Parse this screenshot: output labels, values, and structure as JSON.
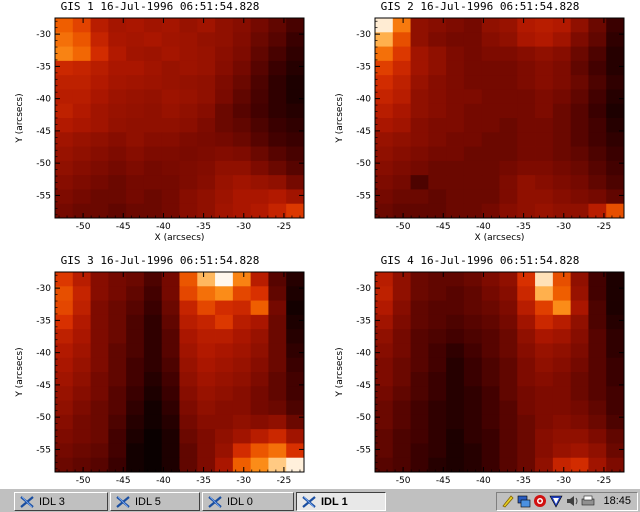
{
  "taskbar": {
    "buttons": [
      {
        "label": "IDL 3",
        "active": false,
        "icon": "idl-icon"
      },
      {
        "label": "IDL 5",
        "active": false,
        "icon": "idl-icon"
      },
      {
        "label": "IDL 0",
        "active": false,
        "icon": "idl-icon"
      },
      {
        "label": "IDL 1",
        "active": true,
        "icon": "idl-icon"
      }
    ],
    "tray_icons": [
      "pen-icon",
      "network-icon",
      "shield-icon",
      "antivirus-icon",
      "volume-icon",
      "printer-icon"
    ],
    "clock": "18:45"
  },
  "colormap": [
    "#000000",
    "#3c0000",
    "#7a0a00",
    "#b01800",
    "#d83000",
    "#f06000",
    "#ff9a20",
    "#ffd090",
    "#ffffff"
  ],
  "chart_data": [
    {
      "type": "heatmap",
      "title": "GIS 1 16-Jul-1996 06:51:54.828",
      "xlabel": "X (arcsecs)",
      "ylabel": "Y (arcsecs)",
      "xticks": [
        "-50",
        "-45",
        "-40",
        "-35",
        "-30",
        "-25"
      ],
      "yticks": [
        "-30",
        "-35",
        "-40",
        "-45",
        "-50",
        "-55"
      ],
      "xlim": [
        -53.5,
        -22.5
      ],
      "ylim": [
        -58.5,
        -27.5
      ],
      "values": [
        [
          0.62,
          0.55,
          0.4,
          0.35,
          0.36,
          0.34,
          0.35,
          0.32,
          0.34,
          0.3,
          0.28,
          0.24,
          0.2,
          0.15
        ],
        [
          0.66,
          0.6,
          0.44,
          0.36,
          0.35,
          0.36,
          0.34,
          0.33,
          0.31,
          0.3,
          0.27,
          0.22,
          0.18,
          0.12
        ],
        [
          0.7,
          0.64,
          0.48,
          0.38,
          0.34,
          0.33,
          0.35,
          0.33,
          0.32,
          0.29,
          0.26,
          0.2,
          0.15,
          0.1
        ],
        [
          0.46,
          0.44,
          0.4,
          0.36,
          0.36,
          0.34,
          0.32,
          0.33,
          0.32,
          0.28,
          0.24,
          0.18,
          0.12,
          0.08
        ],
        [
          0.42,
          0.42,
          0.38,
          0.35,
          0.34,
          0.33,
          0.32,
          0.31,
          0.3,
          0.26,
          0.22,
          0.16,
          0.1,
          0.06
        ],
        [
          0.4,
          0.4,
          0.36,
          0.33,
          0.32,
          0.31,
          0.33,
          0.32,
          0.3,
          0.25,
          0.2,
          0.15,
          0.1,
          0.06
        ],
        [
          0.42,
          0.38,
          0.34,
          0.32,
          0.31,
          0.3,
          0.32,
          0.3,
          0.28,
          0.22,
          0.18,
          0.14,
          0.1,
          0.08
        ],
        [
          0.38,
          0.36,
          0.34,
          0.31,
          0.3,
          0.3,
          0.3,
          0.29,
          0.26,
          0.22,
          0.2,
          0.16,
          0.12,
          0.1
        ],
        [
          0.34,
          0.32,
          0.3,
          0.28,
          0.3,
          0.28,
          0.28,
          0.26,
          0.25,
          0.24,
          0.22,
          0.18,
          0.14,
          0.12
        ],
        [
          0.32,
          0.3,
          0.28,
          0.26,
          0.28,
          0.26,
          0.26,
          0.25,
          0.26,
          0.27,
          0.26,
          0.22,
          0.18,
          0.15
        ],
        [
          0.3,
          0.28,
          0.26,
          0.24,
          0.26,
          0.24,
          0.25,
          0.26,
          0.27,
          0.3,
          0.3,
          0.26,
          0.22,
          0.18
        ],
        [
          0.28,
          0.26,
          0.24,
          0.22,
          0.24,
          0.24,
          0.24,
          0.26,
          0.28,
          0.32,
          0.34,
          0.32,
          0.3,
          0.24
        ],
        [
          0.26,
          0.24,
          0.22,
          0.22,
          0.24,
          0.22,
          0.24,
          0.28,
          0.3,
          0.33,
          0.36,
          0.36,
          0.38,
          0.34
        ],
        [
          0.24,
          0.22,
          0.22,
          0.2,
          0.22,
          0.22,
          0.24,
          0.28,
          0.3,
          0.34,
          0.36,
          0.38,
          0.44,
          0.52
        ]
      ]
    },
    {
      "type": "heatmap",
      "title": "GIS 2 16-Jul-1996 06:51:54.828",
      "xlabel": "X (arcsecs)",
      "ylabel": "Y (arcsecs)",
      "xticks": [
        "-50",
        "-45",
        "-40",
        "-35",
        "-30",
        "-25"
      ],
      "yticks": [
        "-30",
        "-35",
        "-40",
        "-45",
        "-50",
        "-55"
      ],
      "xlim": [
        -53.5,
        -22.5
      ],
      "ylim": [
        -58.5,
        -27.5
      ],
      "values": [
        [
          0.95,
          0.68,
          0.3,
          0.28,
          0.26,
          0.24,
          0.3,
          0.32,
          0.38,
          0.4,
          0.38,
          0.3,
          0.22,
          0.12
        ],
        [
          0.8,
          0.58,
          0.3,
          0.26,
          0.24,
          0.24,
          0.28,
          0.3,
          0.36,
          0.38,
          0.34,
          0.26,
          0.2,
          0.1
        ],
        [
          0.66,
          0.52,
          0.34,
          0.3,
          0.26,
          0.24,
          0.26,
          0.26,
          0.28,
          0.3,
          0.28,
          0.22,
          0.16,
          0.08
        ],
        [
          0.54,
          0.46,
          0.34,
          0.3,
          0.26,
          0.24,
          0.24,
          0.24,
          0.26,
          0.28,
          0.26,
          0.2,
          0.14,
          0.08
        ],
        [
          0.48,
          0.42,
          0.32,
          0.28,
          0.26,
          0.24,
          0.24,
          0.24,
          0.26,
          0.28,
          0.26,
          0.22,
          0.16,
          0.1
        ],
        [
          0.44,
          0.4,
          0.3,
          0.28,
          0.26,
          0.26,
          0.24,
          0.24,
          0.24,
          0.26,
          0.24,
          0.2,
          0.14,
          0.08
        ],
        [
          0.4,
          0.36,
          0.3,
          0.28,
          0.26,
          0.24,
          0.24,
          0.24,
          0.24,
          0.26,
          0.22,
          0.18,
          0.12,
          0.06
        ],
        [
          0.36,
          0.34,
          0.28,
          0.26,
          0.26,
          0.24,
          0.24,
          0.22,
          0.24,
          0.24,
          0.22,
          0.18,
          0.14,
          0.08
        ],
        [
          0.32,
          0.3,
          0.28,
          0.26,
          0.24,
          0.24,
          0.22,
          0.22,
          0.24,
          0.24,
          0.22,
          0.18,
          0.14,
          0.1
        ],
        [
          0.3,
          0.28,
          0.26,
          0.24,
          0.24,
          0.22,
          0.22,
          0.22,
          0.24,
          0.24,
          0.22,
          0.2,
          0.16,
          0.12
        ],
        [
          0.28,
          0.26,
          0.24,
          0.22,
          0.22,
          0.22,
          0.22,
          0.24,
          0.26,
          0.26,
          0.24,
          0.22,
          0.18,
          0.14
        ],
        [
          0.26,
          0.24,
          0.16,
          0.22,
          0.22,
          0.22,
          0.22,
          0.26,
          0.3,
          0.28,
          0.26,
          0.24,
          0.2,
          0.16
        ],
        [
          0.24,
          0.22,
          0.22,
          0.2,
          0.22,
          0.22,
          0.22,
          0.26,
          0.3,
          0.3,
          0.28,
          0.26,
          0.24,
          0.2
        ],
        [
          0.22,
          0.2,
          0.2,
          0.2,
          0.22,
          0.22,
          0.24,
          0.28,
          0.3,
          0.32,
          0.3,
          0.3,
          0.4,
          0.58
        ]
      ]
    },
    {
      "type": "heatmap",
      "title": "GIS 3 16-Jul-1996 06:51:54.828",
      "xlabel": "",
      "ylabel": "Y (arcsecs)",
      "xticks": [
        "-50",
        "-45",
        "-40",
        "-35",
        "-30",
        "-25"
      ],
      "yticks": [
        "-30",
        "-35",
        "-40",
        "-45",
        "-50",
        "-55"
      ],
      "xlim": [
        -53.5,
        -22.5
      ],
      "ylim": [
        -58.5,
        -27.5
      ],
      "values": [
        [
          0.52,
          0.4,
          0.28,
          0.24,
          0.22,
          0.16,
          0.24,
          0.6,
          0.82,
          0.98,
          0.7,
          0.4,
          0.18,
          0.08
        ],
        [
          0.58,
          0.44,
          0.28,
          0.24,
          0.2,
          0.14,
          0.24,
          0.56,
          0.66,
          0.72,
          0.56,
          0.5,
          0.2,
          0.06
        ],
        [
          0.56,
          0.42,
          0.26,
          0.22,
          0.18,
          0.12,
          0.22,
          0.44,
          0.56,
          0.48,
          0.46,
          0.62,
          0.24,
          0.04
        ],
        [
          0.5,
          0.38,
          0.26,
          0.22,
          0.16,
          0.1,
          0.2,
          0.4,
          0.44,
          0.52,
          0.4,
          0.36,
          0.22,
          0.06
        ],
        [
          0.42,
          0.36,
          0.26,
          0.22,
          0.16,
          0.1,
          0.18,
          0.36,
          0.4,
          0.4,
          0.36,
          0.32,
          0.22,
          0.08
        ],
        [
          0.38,
          0.34,
          0.26,
          0.2,
          0.16,
          0.1,
          0.18,
          0.34,
          0.38,
          0.36,
          0.34,
          0.3,
          0.22,
          0.1
        ],
        [
          0.36,
          0.32,
          0.26,
          0.2,
          0.14,
          0.1,
          0.16,
          0.32,
          0.36,
          0.34,
          0.32,
          0.28,
          0.22,
          0.12
        ],
        [
          0.34,
          0.3,
          0.24,
          0.2,
          0.14,
          0.08,
          0.14,
          0.3,
          0.34,
          0.32,
          0.3,
          0.26,
          0.2,
          0.14
        ],
        [
          0.32,
          0.28,
          0.24,
          0.18,
          0.12,
          0.06,
          0.12,
          0.28,
          0.32,
          0.3,
          0.28,
          0.24,
          0.2,
          0.14
        ],
        [
          0.3,
          0.26,
          0.22,
          0.18,
          0.1,
          0.04,
          0.1,
          0.26,
          0.3,
          0.28,
          0.28,
          0.24,
          0.22,
          0.16
        ],
        [
          0.28,
          0.24,
          0.22,
          0.16,
          0.08,
          0.04,
          0.08,
          0.24,
          0.28,
          0.28,
          0.3,
          0.28,
          0.3,
          0.22
        ],
        [
          0.26,
          0.24,
          0.22,
          0.14,
          0.06,
          0.02,
          0.06,
          0.22,
          0.26,
          0.3,
          0.34,
          0.4,
          0.46,
          0.34
        ],
        [
          0.24,
          0.22,
          0.2,
          0.14,
          0.04,
          0.02,
          0.06,
          0.2,
          0.26,
          0.32,
          0.48,
          0.6,
          0.66,
          0.5
        ],
        [
          0.22,
          0.2,
          0.18,
          0.12,
          0.04,
          0.02,
          0.06,
          0.2,
          0.26,
          0.36,
          0.62,
          0.72,
          0.86,
          0.96
        ]
      ]
    },
    {
      "type": "heatmap",
      "title": "GIS 4 16-Jul-1996 06:51:54.828",
      "xlabel": "",
      "ylabel": "Y (arcsecs)",
      "xticks": [
        "-50",
        "-45",
        "-40",
        "-35",
        "-30",
        "-25"
      ],
      "yticks": [
        "-30",
        "-35",
        "-40",
        "-45",
        "-50",
        "-55"
      ],
      "xlim": [
        -53.5,
        -22.5
      ],
      "ylim": [
        -58.5,
        -27.5
      ],
      "values": [
        [
          0.4,
          0.3,
          0.22,
          0.2,
          0.2,
          0.22,
          0.26,
          0.3,
          0.5,
          0.92,
          0.58,
          0.3,
          0.14,
          0.06
        ],
        [
          0.42,
          0.3,
          0.22,
          0.2,
          0.18,
          0.2,
          0.24,
          0.28,
          0.46,
          0.8,
          0.62,
          0.32,
          0.14,
          0.06
        ],
        [
          0.38,
          0.28,
          0.2,
          0.18,
          0.18,
          0.2,
          0.22,
          0.26,
          0.4,
          0.54,
          0.72,
          0.36,
          0.16,
          0.06
        ],
        [
          0.34,
          0.26,
          0.2,
          0.18,
          0.16,
          0.18,
          0.2,
          0.24,
          0.34,
          0.46,
          0.4,
          0.3,
          0.16,
          0.08
        ],
        [
          0.3,
          0.24,
          0.18,
          0.16,
          0.14,
          0.16,
          0.18,
          0.22,
          0.3,
          0.36,
          0.34,
          0.28,
          0.18,
          0.1
        ],
        [
          0.28,
          0.24,
          0.18,
          0.14,
          0.1,
          0.14,
          0.18,
          0.22,
          0.28,
          0.32,
          0.3,
          0.26,
          0.18,
          0.1
        ],
        [
          0.26,
          0.22,
          0.18,
          0.14,
          0.08,
          0.12,
          0.16,
          0.2,
          0.26,
          0.3,
          0.28,
          0.24,
          0.18,
          0.12
        ],
        [
          0.26,
          0.22,
          0.16,
          0.12,
          0.08,
          0.12,
          0.16,
          0.2,
          0.26,
          0.28,
          0.26,
          0.22,
          0.18,
          0.12
        ],
        [
          0.24,
          0.2,
          0.16,
          0.12,
          0.08,
          0.1,
          0.14,
          0.2,
          0.24,
          0.26,
          0.26,
          0.22,
          0.18,
          0.14
        ],
        [
          0.22,
          0.18,
          0.14,
          0.1,
          0.08,
          0.1,
          0.14,
          0.18,
          0.24,
          0.26,
          0.26,
          0.24,
          0.2,
          0.14
        ],
        [
          0.22,
          0.18,
          0.14,
          0.1,
          0.08,
          0.1,
          0.14,
          0.18,
          0.22,
          0.26,
          0.28,
          0.26,
          0.22,
          0.16
        ],
        [
          0.2,
          0.16,
          0.14,
          0.1,
          0.06,
          0.1,
          0.12,
          0.18,
          0.22,
          0.28,
          0.3,
          0.3,
          0.26,
          0.2
        ],
        [
          0.2,
          0.16,
          0.12,
          0.1,
          0.06,
          0.08,
          0.12,
          0.18,
          0.22,
          0.28,
          0.32,
          0.34,
          0.3,
          0.22
        ],
        [
          0.18,
          0.16,
          0.12,
          0.08,
          0.06,
          0.08,
          0.12,
          0.18,
          0.22,
          0.3,
          0.44,
          0.48,
          0.34,
          0.26
        ]
      ]
    }
  ]
}
